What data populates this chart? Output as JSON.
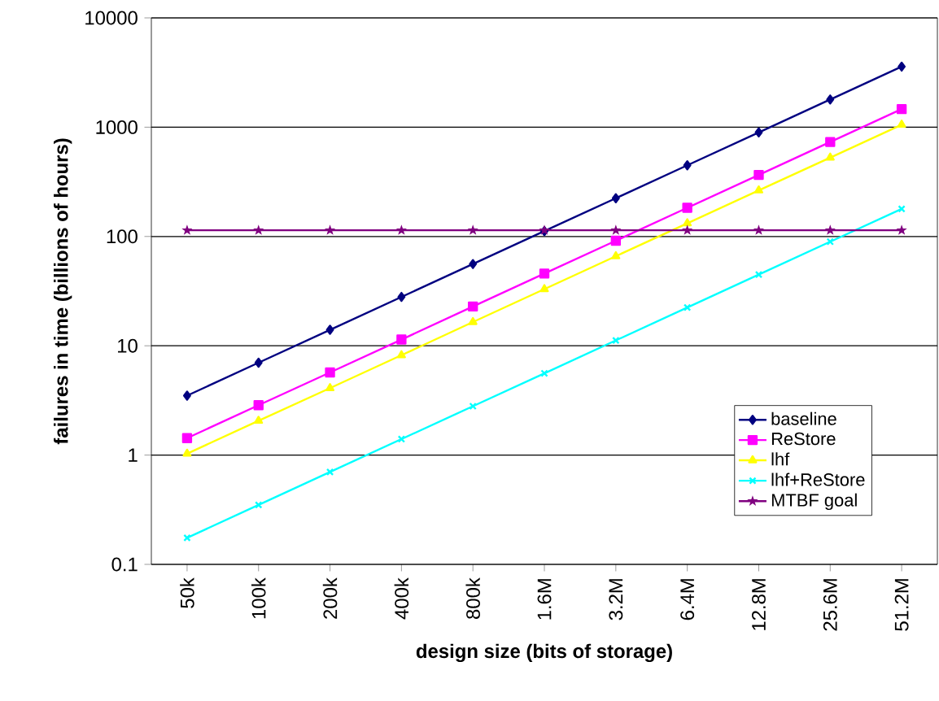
{
  "chart_data": {
    "type": "line",
    "xlabel": "design size (bits of storage)",
    "ylabel": "failures in time (billions of hours)",
    "categories": [
      "50k",
      "100k",
      "200k",
      "400k",
      "800k",
      "1.6M",
      "3.2M",
      "6.4M",
      "12.8M",
      "25.6M",
      "51.2M"
    ],
    "log": "y",
    "ylim": [
      0.1,
      10000
    ],
    "yticks": [
      0.1,
      1,
      10,
      100,
      1000,
      10000
    ],
    "grid": "y",
    "legend": "bottom right",
    "line_style": "solid",
    "series": [
      {
        "name": "baseline",
        "color": "#000080",
        "marker": "diamond",
        "values": [
          3.5,
          7,
          14,
          28,
          56,
          112,
          224,
          448,
          896,
          1792,
          3584
        ]
      },
      {
        "name": "ReStore",
        "color": "#ff00ff",
        "marker": "square",
        "values": [
          1.43,
          2.86,
          5.7,
          11.4,
          22.9,
          45.8,
          91.5,
          183,
          366,
          732,
          1464
        ]
      },
      {
        "name": "lhf",
        "color": "#ffff00",
        "marker": "triangle",
        "values": [
          1.03,
          2.06,
          4.1,
          8.2,
          16.5,
          33,
          66,
          132,
          264,
          527,
          1054
        ]
      },
      {
        "name": "lhf+ReStore",
        "color": "#00ffff",
        "marker": "cross",
        "values": [
          0.175,
          0.35,
          0.7,
          1.4,
          2.8,
          5.6,
          11.2,
          22.4,
          44.8,
          89.6,
          179
        ]
      },
      {
        "name": "MTBF goal",
        "color": "#800080",
        "marker": "star",
        "values": [
          114,
          114,
          114,
          114,
          114,
          114,
          114,
          114,
          114,
          114,
          114
        ]
      }
    ]
  }
}
